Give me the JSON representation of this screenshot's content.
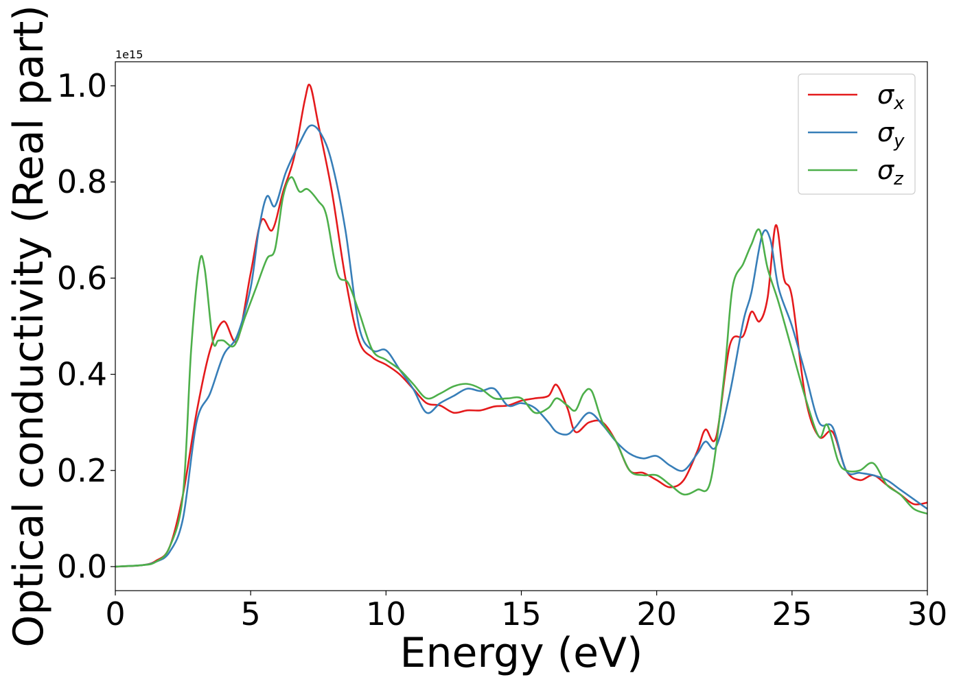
{
  "chart_data": {
    "type": "line",
    "xlabel": "Energy (eV)",
    "ylabel": "Optical conductivity (Real part)",
    "y_offset_label": "1e15",
    "xlim": [
      0,
      30
    ],
    "ylim": [
      -0.05,
      1.05
    ],
    "x_ticks": [
      0,
      5,
      10,
      15,
      20,
      25,
      30
    ],
    "x_tick_labels": [
      "0",
      "5",
      "10",
      "15",
      "20",
      "25",
      "30"
    ],
    "y_ticks": [
      0.0,
      0.2,
      0.4,
      0.6,
      0.8,
      1.0
    ],
    "y_tick_labels": [
      "0.0",
      "0.2",
      "0.4",
      "0.6",
      "0.8",
      "1.0"
    ],
    "grid": false,
    "legend_position": "top-right",
    "series": [
      {
        "name": "σx",
        "symbol": "σ",
        "subscript": "x",
        "color": "#e41a1c",
        "x": [
          0,
          1,
          1.5,
          2,
          2.5,
          3,
          3.5,
          4,
          4.5,
          5,
          5.4,
          5.8,
          6.2,
          6.6,
          7,
          7.2,
          7.5,
          8,
          8.5,
          9,
          9.5,
          10,
          10.5,
          11,
          11.5,
          12,
          12.5,
          13,
          13.5,
          14,
          14.5,
          15,
          15.5,
          16,
          16.3,
          16.7,
          17,
          17.5,
          18,
          18.5,
          19,
          19.5,
          20,
          20.5,
          21,
          21.5,
          21.8,
          22.2,
          22.7,
          23.2,
          23.5,
          23.8,
          24.1,
          24.4,
          24.7,
          25,
          25.5,
          26,
          26.5,
          27,
          27.5,
          28,
          28.5,
          29,
          29.5,
          30
        ],
        "y": [
          0,
          0.003,
          0.012,
          0.04,
          0.15,
          0.32,
          0.45,
          0.51,
          0.47,
          0.61,
          0.72,
          0.7,
          0.78,
          0.85,
          0.97,
          1.0,
          0.92,
          0.78,
          0.6,
          0.47,
          0.435,
          0.42,
          0.4,
          0.37,
          0.34,
          0.335,
          0.32,
          0.325,
          0.325,
          0.333,
          0.335,
          0.345,
          0.35,
          0.355,
          0.378,
          0.33,
          0.28,
          0.3,
          0.3,
          0.26,
          0.2,
          0.195,
          0.18,
          0.165,
          0.18,
          0.24,
          0.285,
          0.27,
          0.46,
          0.48,
          0.53,
          0.51,
          0.56,
          0.71,
          0.6,
          0.56,
          0.35,
          0.27,
          0.28,
          0.2,
          0.18,
          0.19,
          0.17,
          0.15,
          0.13,
          0.133
        ]
      },
      {
        "name": "σy",
        "symbol": "σ",
        "subscript": "y",
        "color": "#377eb8",
        "x": [
          0,
          1,
          1.5,
          2,
          2.5,
          3,
          3.5,
          4,
          4.5,
          5,
          5.3,
          5.6,
          5.9,
          6.3,
          6.8,
          7.2,
          7.6,
          8,
          8.5,
          9,
          9.5,
          10,
          10.5,
          11,
          11.5,
          12,
          12.5,
          13,
          13.5,
          14,
          14.5,
          15,
          15.5,
          16,
          16.3,
          16.7,
          17,
          17.5,
          18,
          18.5,
          19,
          19.5,
          20,
          20.5,
          21,
          21.5,
          21.8,
          22.2,
          22.7,
          23.2,
          23.5,
          23.9,
          24.2,
          24.5,
          25,
          25.5,
          26,
          26.5,
          27,
          27.5,
          28,
          28.5,
          29,
          29.5,
          30
        ],
        "y": [
          0,
          0.003,
          0.01,
          0.03,
          0.1,
          0.3,
          0.36,
          0.44,
          0.48,
          0.58,
          0.7,
          0.77,
          0.75,
          0.82,
          0.88,
          0.917,
          0.9,
          0.84,
          0.7,
          0.5,
          0.45,
          0.45,
          0.41,
          0.37,
          0.32,
          0.34,
          0.355,
          0.37,
          0.365,
          0.37,
          0.335,
          0.34,
          0.33,
          0.3,
          0.28,
          0.275,
          0.29,
          0.32,
          0.295,
          0.26,
          0.235,
          0.225,
          0.23,
          0.21,
          0.2,
          0.235,
          0.26,
          0.25,
          0.36,
          0.51,
          0.57,
          0.69,
          0.68,
          0.58,
          0.5,
          0.4,
          0.3,
          0.29,
          0.2,
          0.195,
          0.19,
          0.18,
          0.16,
          0.14,
          0.12
        ]
      },
      {
        "name": "σz",
        "symbol": "σ",
        "subscript": "z",
        "color": "#4daf4a",
        "x": [
          0,
          1,
          1.5,
          2,
          2.5,
          2.8,
          3.1,
          3.3,
          3.6,
          3.8,
          4,
          4.4,
          4.8,
          5.2,
          5.6,
          5.9,
          6.2,
          6.5,
          6.8,
          7.1,
          7.5,
          7.8,
          8.2,
          8.6,
          9,
          9.5,
          10,
          10.5,
          11,
          11.5,
          12,
          12.5,
          13,
          13.5,
          14,
          14.5,
          15,
          15.5,
          16,
          16.3,
          16.7,
          17,
          17.3,
          17.6,
          18,
          18.5,
          19,
          19.5,
          20,
          20.5,
          21,
          21.5,
          22,
          22.5,
          22.8,
          23.2,
          23.5,
          23.8,
          24.1,
          24.5,
          25,
          25.5,
          26,
          26.3,
          26.7,
          27,
          27.5,
          28,
          28.5,
          29,
          29.5,
          30
        ],
        "y": [
          0,
          0.003,
          0.01,
          0.04,
          0.15,
          0.45,
          0.63,
          0.62,
          0.47,
          0.47,
          0.47,
          0.46,
          0.52,
          0.58,
          0.64,
          0.66,
          0.77,
          0.81,
          0.78,
          0.785,
          0.76,
          0.73,
          0.61,
          0.59,
          0.53,
          0.45,
          0.43,
          0.41,
          0.38,
          0.35,
          0.36,
          0.375,
          0.38,
          0.37,
          0.35,
          0.35,
          0.35,
          0.32,
          0.33,
          0.35,
          0.335,
          0.325,
          0.36,
          0.365,
          0.3,
          0.26,
          0.2,
          0.19,
          0.19,
          0.17,
          0.15,
          0.16,
          0.18,
          0.4,
          0.58,
          0.63,
          0.67,
          0.7,
          0.62,
          0.55,
          0.45,
          0.35,
          0.27,
          0.295,
          0.22,
          0.2,
          0.2,
          0.215,
          0.17,
          0.15,
          0.12,
          0.11
        ]
      }
    ]
  }
}
